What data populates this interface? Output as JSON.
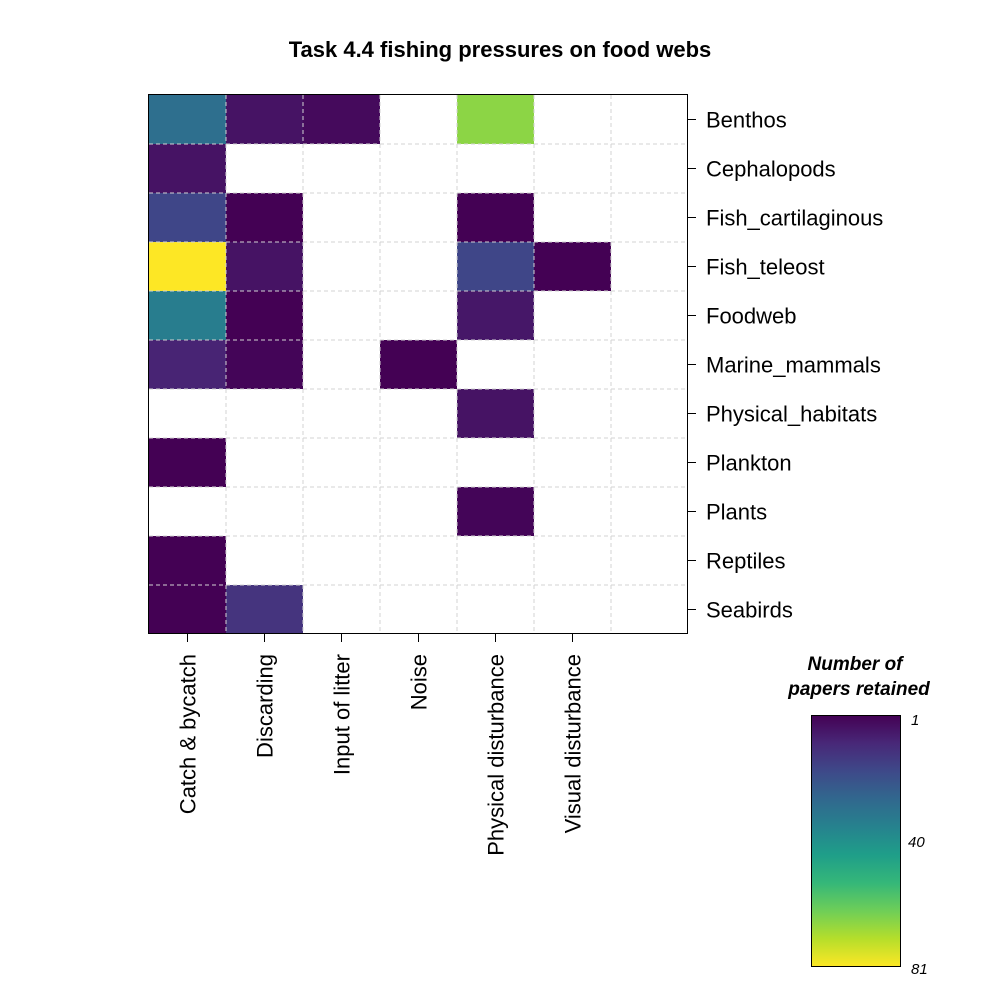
{
  "chart_data": {
    "type": "heatmap",
    "title": "Task 4.4 fishing pressures on food webs",
    "columns": [
      "Catch & bycatch",
      "Discarding",
      "Input of litter",
      "Noise",
      "Physical disturbance",
      "Visual disturbance",
      ""
    ],
    "rows": [
      "Benthos",
      "Cephalopods",
      "Fish_cartilaginous",
      "Fish_teleost",
      "Foodweb",
      "Marine_mammals",
      "Physical_habitats",
      "Plankton",
      "Plants",
      "Reptiles",
      "Seabirds"
    ],
    "values": [
      [
        30,
        5,
        3,
        null,
        67,
        null,
        null
      ],
      [
        5,
        null,
        null,
        null,
        null,
        null,
        null
      ],
      [
        18,
        1,
        null,
        null,
        1,
        null,
        null
      ],
      [
        81,
        5,
        null,
        null,
        18,
        1,
        null
      ],
      [
        35,
        1,
        null,
        null,
        6,
        null,
        null
      ],
      [
        9,
        2,
        null,
        1,
        null,
        null,
        null
      ],
      [
        null,
        null,
        null,
        null,
        5,
        null,
        null
      ],
      [
        1,
        null,
        null,
        null,
        null,
        null,
        null
      ],
      [
        null,
        null,
        null,
        null,
        2,
        null,
        null
      ],
      [
        1,
        null,
        null,
        null,
        null,
        null,
        null
      ],
      [
        1,
        13,
        null,
        null,
        null,
        null,
        null
      ]
    ],
    "legend": {
      "title_lines": [
        "Number of",
        "papers retained"
      ],
      "ticks": [
        "1",
        "40",
        "81"
      ],
      "min": 1,
      "max": 81,
      "colormap": "viridis-reversed",
      "colors": [
        "#440154",
        "#482878",
        "#3e4989",
        "#31688e",
        "#26828e",
        "#1f9e89",
        "#35b779",
        "#6ece58",
        "#b5de2b",
        "#fde725"
      ]
    },
    "grid": true,
    "empty_color": "#ffffff",
    "grid_color": "#d3d3d3"
  }
}
